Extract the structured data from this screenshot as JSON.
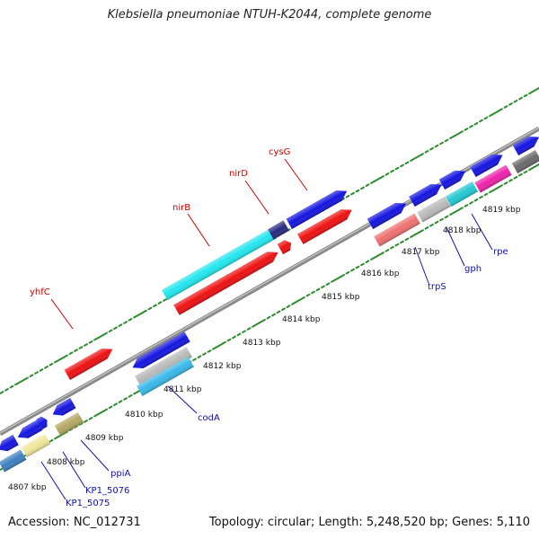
{
  "title": "Klebsiella pneumoniae NTUH-K2044, complete genome",
  "footer": {
    "accession": "Accession: NC_012731",
    "summary": "Topology: circular; Length: 5,248,520 bp; Genes: 5,110"
  },
  "axis": {
    "unit": "kbp",
    "ticks": [
      "4807 kbp",
      "4808 kbp",
      "4809 kbp",
      "4810 kbp",
      "4811 kbp",
      "4812 kbp",
      "4813 kbp",
      "4814 kbp",
      "4815 kbp",
      "4816 kbp",
      "4817 kbp",
      "4818 kbp",
      "4819 kbp"
    ]
  },
  "gene_labels_top": [
    "yhfC",
    "nirB",
    "nirD",
    "cysG"
  ],
  "gene_labels_bottom": [
    "KP1_5075",
    "KP1_5076",
    "ppiA",
    "codA",
    "trpS",
    "gph",
    "rpe"
  ],
  "colors": {
    "backbone": "#8a8a8a",
    "dots": "#2e8b2e",
    "top_label": "#d10000",
    "bottom_label": "#1010b0",
    "gene_red": "#ee1111",
    "gene_blue": "#1515e0",
    "gene_cyan": "#22e6ee",
    "gene_lightblue": "#38b8e8",
    "gene_salmon": "#ee7070",
    "gene_gray": "#b9b9b9",
    "gene_teal": "#22c8d0",
    "gene_magenta": "#ee22aa",
    "gene_khaki": "#b3a860",
    "gene_paleyellow": "#eee69a",
    "gene_steelblue": "#3f7fc0",
    "gene_darkgray": "#6a6a6a",
    "gene_navy": "#2a2a80"
  }
}
